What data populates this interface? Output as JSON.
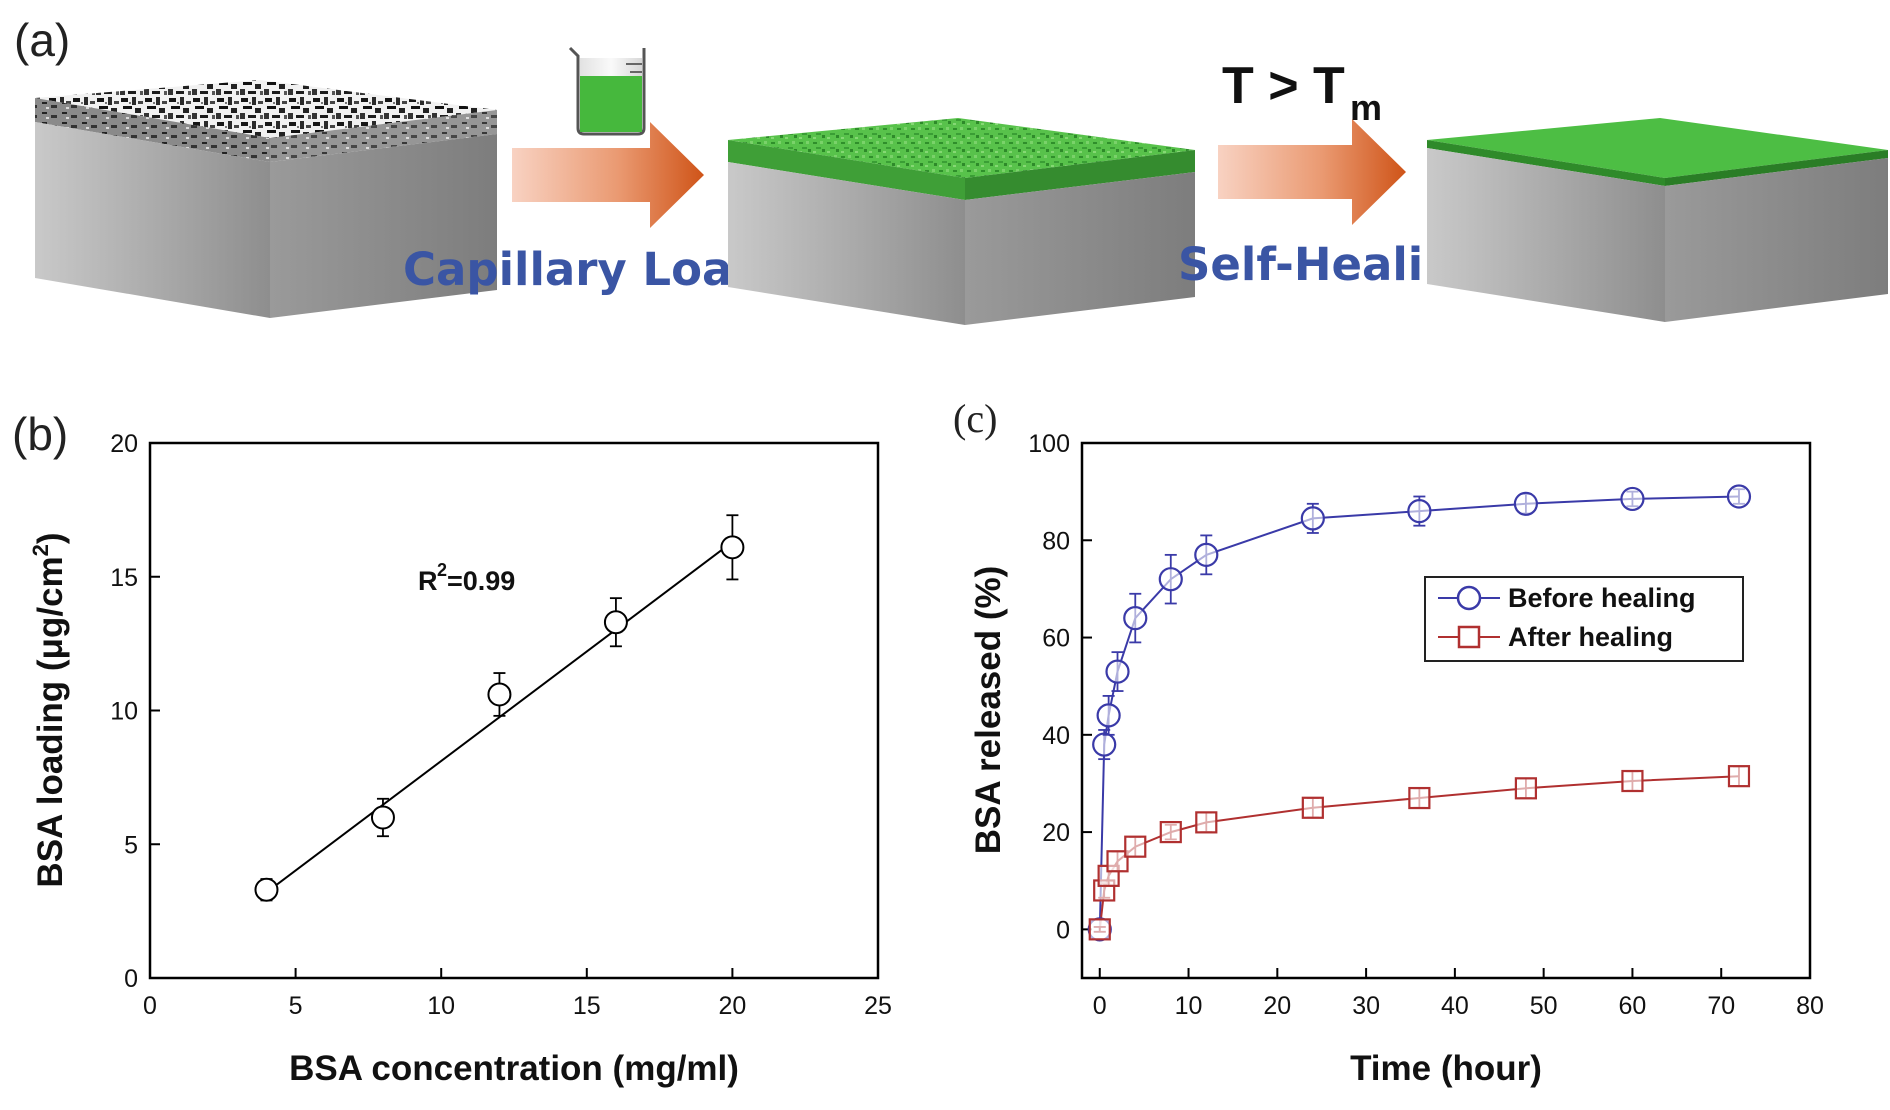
{
  "panel_a": {
    "label": "(a)",
    "step1_label": "Capillary Loading",
    "step2_label": "Self-Healing",
    "condition_T": "T > T",
    "condition_sub": "m",
    "colors": {
      "green": "#4fbf45",
      "arrow_start": "#f6c4b0",
      "arrow_end": "#d2581c",
      "label_blue": "#3a55a4",
      "base_gray": "#a8a8a8"
    }
  },
  "chart_data": [
    {
      "panel": "(b)",
      "type": "scatter",
      "xlabel": "BSA concentration (mg/ml)",
      "ylabel_main": "BSA loading (μg/cm",
      "ylabel_sup": "2",
      "ylabel_close": ")",
      "xlim": [
        0,
        25
      ],
      "ylim": [
        0,
        20
      ],
      "xticks": [
        0,
        5,
        10,
        15,
        20,
        25
      ],
      "yticks": [
        0,
        5,
        10,
        15,
        20
      ],
      "annotation_main": "R",
      "annotation_sup": "2",
      "annotation_rest": "=0.99",
      "fit_line": {
        "x": [
          4,
          20
        ],
        "y": [
          3.2,
          16.3
        ]
      },
      "series": [
        {
          "marker": "circle",
          "x": [
            4,
            8,
            12,
            16,
            20
          ],
          "y": [
            3.3,
            6.0,
            10.6,
            13.3,
            16.1
          ],
          "error": [
            0.4,
            0.7,
            0.8,
            0.9,
            1.2
          ]
        }
      ]
    },
    {
      "panel": "(c)",
      "type": "line",
      "xlabel": "Time (hour)",
      "ylabel": "BSA released (%)",
      "xlim": [
        -2,
        80
      ],
      "ylim": [
        -10,
        100
      ],
      "xticks": [
        0,
        10,
        20,
        30,
        40,
        50,
        60,
        70,
        80
      ],
      "yticks": [
        0,
        20,
        40,
        60,
        80,
        100
      ],
      "legend_position": "center-right",
      "series": [
        {
          "name": "Before healing",
          "marker": "circle",
          "color": "#3a3aa8",
          "x": [
            0,
            0.5,
            1,
            2,
            4,
            8,
            12,
            24,
            36,
            48,
            60,
            72
          ],
          "y": [
            0,
            38,
            44,
            53,
            64,
            72,
            77,
            84.5,
            86,
            87.5,
            88.5,
            89
          ],
          "error": [
            0.5,
            3,
            4,
            4,
            5,
            5,
            4,
            3,
            3,
            2,
            1.5,
            1.5
          ]
        },
        {
          "name": "After healing",
          "marker": "square",
          "color": "#b03030",
          "x": [
            0,
            0.5,
            1,
            2,
            4,
            8,
            12,
            24,
            36,
            48,
            60,
            72
          ],
          "y": [
            0,
            8,
            11,
            14,
            17,
            20,
            22,
            25,
            27,
            29,
            30.5,
            31.5
          ],
          "error": [
            0.5,
            1.5,
            2,
            2,
            2,
            1.5,
            2,
            2,
            2,
            2,
            2,
            2
          ]
        }
      ]
    }
  ]
}
